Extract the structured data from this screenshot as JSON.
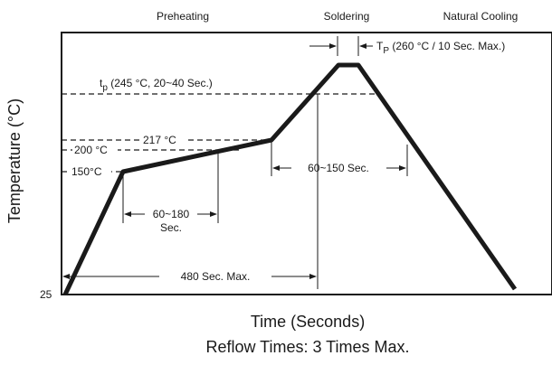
{
  "diagram": {
    "phases": [
      "Preheating",
      "Soldering",
      "Natural Cooling"
    ],
    "y_axis_label": "Temperature (°C)",
    "y_axis_start": "25",
    "x_axis_label": "Time (Seconds)",
    "footer": "Reflow Times: 3 Times Max.",
    "tp_label_main": "T",
    "tp_label_sub": "P",
    "tp_label_rest": " (260 °C / 10 Sec. Max.)",
    "tp_small_main": "t",
    "tp_small_sub": "p",
    "tp_small_rest": " (245 °C, 20~40 Sec.)",
    "temp_217": "217 °C",
    "temp_200": "200 °C",
    "temp_150": "150°C",
    "preheat_time_line1": "60~180",
    "preheat_time_line2": "Sec.",
    "above_liquidus_time": "60~150 Sec.",
    "total_time": "480 Sec. Max.",
    "profile_points": [
      {
        "t": 0,
        "temp": 25
      },
      {
        "t": 60,
        "temp": 150
      },
      {
        "t": 210,
        "temp": 200
      },
      {
        "t": 270,
        "temp": 260
      },
      {
        "t": 285,
        "temp": 260
      },
      {
        "t": 480,
        "temp": 25
      }
    ]
  }
}
